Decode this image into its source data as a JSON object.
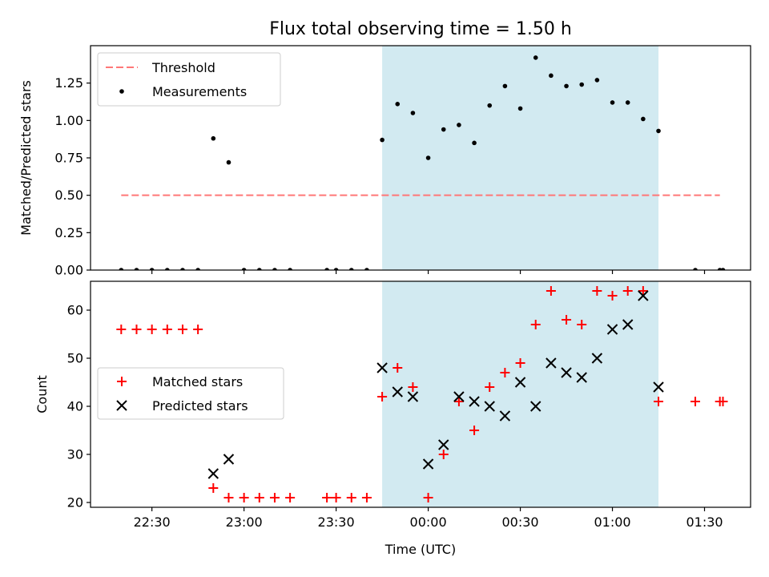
{
  "chart_data": {
    "type": "scatter",
    "title": "Flux total observing time = 1.50 h",
    "colors": {
      "threshold": "#ff7777",
      "measurement": "#000000",
      "matched": "#ff0000",
      "predicted": "#000000",
      "shade": "#add8e6"
    },
    "shaded_interval": [
      "23:45",
      "01:15"
    ],
    "x_axis": {
      "label": "Time (UTC)",
      "range": [
        "22:10",
        "01:45"
      ],
      "ticks": [
        "22:30",
        "23:00",
        "23:30",
        "00:00",
        "00:30",
        "01:00",
        "01:30"
      ]
    },
    "panels": [
      {
        "ylabel": "Matched/Predicted stars",
        "ylim": [
          0,
          1.5
        ],
        "yticks": [
          "0.00",
          "0.25",
          "0.50",
          "0.75",
          "1.00",
          "1.25"
        ],
        "legend_position": "upper-left",
        "legend": [
          {
            "marker": "dash",
            "label": "Threshold"
          },
          {
            "marker": "dot",
            "label": "Measurements"
          }
        ],
        "threshold": {
          "value": 0.5,
          "x_start": "22:20",
          "x_end": "01:35"
        },
        "series": [
          {
            "marker": "dot",
            "x": [
              "22:20",
              "22:25",
              "22:30",
              "22:35",
              "22:40",
              "22:45",
              "22:50",
              "22:55",
              "23:00",
              "23:05",
              "23:10",
              "23:15",
              "23:27",
              "23:30",
              "23:35",
              "23:40",
              "23:45",
              "23:50",
              "23:55",
              "00:00",
              "00:05",
              "00:10",
              "00:15",
              "00:20",
              "00:25",
              "00:30",
              "00:35",
              "00:40",
              "00:45",
              "00:50",
              "00:55",
              "01:00",
              "01:05",
              "01:10",
              "01:15",
              "01:27",
              "01:35",
              "01:36"
            ],
            "y": [
              0,
              0,
              0,
              0,
              0,
              0,
              0.88,
              0.72,
              0,
              0,
              0,
              0,
              0,
              0,
              0,
              0,
              0.87,
              1.11,
              1.05,
              0.75,
              0.94,
              0.97,
              0.85,
              1.1,
              1.23,
              1.08,
              1.42,
              1.3,
              1.23,
              1.24,
              1.27,
              1.12,
              1.12,
              1.01,
              0.93,
              0,
              0,
              0
            ]
          }
        ]
      },
      {
        "ylabel": "Count",
        "ylim": [
          19,
          66
        ],
        "yticks": [
          "20",
          "30",
          "40",
          "50",
          "60"
        ],
        "legend_position": "center-left",
        "legend": [
          {
            "marker": "plus",
            "label": "Matched stars"
          },
          {
            "marker": "cross",
            "label": "Predicted stars"
          }
        ],
        "series": [
          {
            "marker": "plus",
            "x": [
              "22:20",
              "22:25",
              "22:30",
              "22:35",
              "22:40",
              "22:45",
              "22:50",
              "22:55",
              "23:00",
              "23:05",
              "23:10",
              "23:15",
              "23:27",
              "23:30",
              "23:35",
              "23:40",
              "23:45",
              "23:50",
              "23:55",
              "00:00",
              "00:05",
              "00:10",
              "00:15",
              "00:20",
              "00:25",
              "00:30",
              "00:35",
              "00:40",
              "00:45",
              "00:50",
              "00:55",
              "01:00",
              "01:05",
              "01:10",
              "01:15",
              "01:27",
              "01:35",
              "01:36"
            ],
            "y": [
              56,
              56,
              56,
              56,
              56,
              56,
              23,
              21,
              21,
              21,
              21,
              21,
              21,
              21,
              21,
              21,
              42,
              48,
              44,
              21,
              30,
              41,
              35,
              44,
              47,
              49,
              57,
              64,
              58,
              57,
              64,
              63,
              64,
              64,
              41,
              41,
              41,
              41
            ]
          },
          {
            "marker": "cross",
            "x": [
              "22:50",
              "22:55",
              "23:45",
              "23:50",
              "23:55",
              "00:00",
              "00:05",
              "00:10",
              "00:15",
              "00:20",
              "00:25",
              "00:30",
              "00:35",
              "00:40",
              "00:45",
              "00:50",
              "00:55",
              "01:00",
              "01:05",
              "01:10",
              "01:15"
            ],
            "y": [
              26,
              29,
              48,
              43,
              42,
              28,
              32,
              42,
              41,
              40,
              38,
              45,
              40,
              49,
              47,
              46,
              50,
              56,
              57,
              63,
              44
            ]
          }
        ]
      }
    ]
  }
}
